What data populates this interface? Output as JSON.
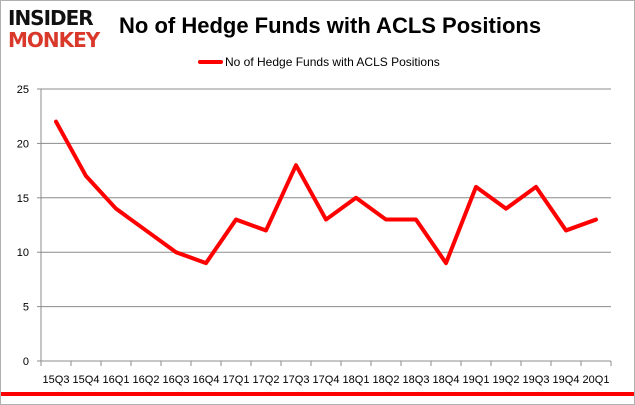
{
  "logo": {
    "line1": "INSIDER",
    "line2": "MONKEY"
  },
  "chart_data": {
    "type": "line",
    "title": "No of Hedge Funds with ACLS Positions",
    "xlabel": "",
    "ylabel": "",
    "categories": [
      "15Q3",
      "15Q4",
      "16Q1",
      "16Q2",
      "16Q3",
      "16Q4",
      "17Q1",
      "17Q2",
      "17Q3",
      "17Q4",
      "18Q1",
      "18Q2",
      "18Q3",
      "18Q4",
      "19Q1",
      "19Q2",
      "19Q3",
      "19Q4",
      "20Q1"
    ],
    "series": [
      {
        "name": "No of Hedge Funds with ACLS Positions",
        "color": "#ff0000",
        "values": [
          22,
          17,
          14,
          12,
          10,
          9,
          13,
          12,
          18,
          13,
          15,
          13,
          13,
          9,
          16,
          14,
          16,
          12,
          13
        ]
      }
    ],
    "ylim": [
      0,
      25
    ],
    "yticks": [
      0,
      5,
      10,
      15,
      20,
      25
    ],
    "grid": true,
    "legend": "top-center"
  }
}
